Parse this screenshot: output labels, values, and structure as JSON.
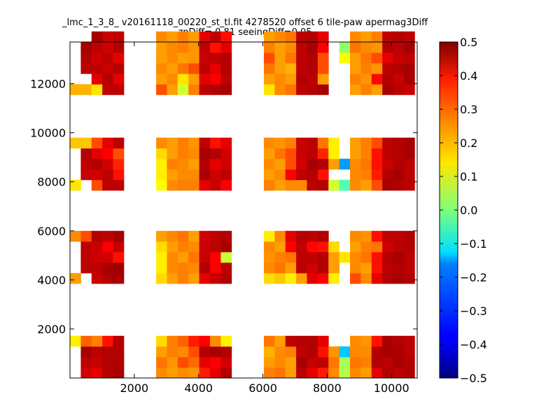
{
  "chart_data": {
    "type": "heatmap",
    "title": "_lmc_1_3_8_ v20161118_00220_st_tl.fit 4278520 offset 6 tile-paw apermag3Diff",
    "subtitle": "zpDiff= 0.81 seeingDiff=0.05",
    "xlabel": "",
    "ylabel": "",
    "xlim": [
      0,
      10800
    ],
    "ylim": [
      0,
      13700
    ],
    "xticks": [
      2000,
      4000,
      6000,
      8000,
      10000
    ],
    "yticks": [
      2000,
      4000,
      6000,
      8000,
      10000,
      12000
    ],
    "xtick_labels": [
      "2000",
      "4000",
      "6000",
      "8000",
      "10000"
    ],
    "ytick_labels": [
      "2000",
      "4000",
      "6000",
      "8000",
      "10000",
      "12000"
    ],
    "colormap": "jet",
    "vmin": -0.5,
    "vmax": 0.5,
    "colorbar_ticks": [
      0.5,
      0.4,
      0.3,
      0.2,
      0.1,
      0.0,
      -0.1,
      -0.2,
      -0.3,
      -0.4,
      -0.5
    ],
    "colorbar_tick_labels": [
      "0.5",
      "0.4",
      "0.3",
      "0.2",
      "0.1",
      "0.0",
      "−0.1",
      "−0.2",
      "−0.3",
      "−0.4",
      "−0.5"
    ],
    "grid": false,
    "cell_width": 335,
    "cell_height": 430,
    "columns_x_start": [
      0,
      335,
      670,
      1005,
      1340,
      2680,
      3015,
      3350,
      3685,
      4020,
      4355,
      4690,
      6030,
      6365,
      6700,
      7035,
      7370,
      7705,
      8040,
      8375,
      8710,
      9045,
      9380,
      9715,
      10050,
      10385
    ],
    "blocks": [
      {
        "name": "bottom",
        "y_start": 0,
        "rows": [
          [
            null,
            0.42,
            0.4,
            0.45,
            0.46,
            0.24,
            0.22,
            0.24,
            0.23,
            0.35,
            0.4,
            0.45,
            0.25,
            0.26,
            0.22,
            0.44,
            0.4,
            0.35,
            0.24,
            0.05,
            0.24,
            0.22,
            0.4,
            0.45,
            0.44,
            0.45
          ],
          [
            null,
            0.44,
            0.43,
            0.45,
            0.45,
            0.26,
            0.23,
            0.3,
            0.27,
            0.4,
            0.38,
            0.42,
            0.22,
            0.24,
            0.22,
            0.46,
            0.43,
            0.44,
            0.26,
            0.04,
            0.26,
            0.25,
            0.45,
            0.44,
            0.46,
            0.45
          ],
          [
            null,
            0.46,
            0.44,
            0.45,
            0.45,
            0.22,
            0.25,
            0.24,
            0.3,
            0.45,
            0.46,
            0.45,
            0.2,
            0.24,
            0.25,
            0.44,
            0.45,
            0.36,
            0.23,
            -0.18,
            0.24,
            0.24,
            0.45,
            0.46,
            0.46,
            0.44
          ],
          [
            0.14,
            0.28,
            0.25,
            0.36,
            0.45,
            0.16,
            0.25,
            0.28,
            0.35,
            0.38,
            0.24,
            0.14,
            0.26,
            0.22,
            0.44,
            0.45,
            0.45,
            0.4,
            null,
            null,
            0.24,
            0.23,
            0.36,
            0.46,
            0.45,
            0.44
          ]
        ]
      },
      {
        "name": "lower-middle",
        "y_start": 3850,
        "rows": [
          [
            0.22,
            null,
            0.43,
            0.45,
            0.46,
            0.16,
            0.22,
            0.25,
            0.22,
            0.4,
            0.43,
            0.45,
            0.16,
            0.18,
            0.14,
            0.22,
            0.4,
            0.38,
            0.14,
            null,
            0.3,
            0.24,
            0.4,
            0.45,
            0.46,
            0.45
          ],
          [
            null,
            0.44,
            0.44,
            0.46,
            0.47,
            0.14,
            0.24,
            0.25,
            0.24,
            0.45,
            0.38,
            0.44,
            0.24,
            0.26,
            0.22,
            0.44,
            0.42,
            0.45,
            0.22,
            null,
            0.24,
            0.22,
            0.36,
            0.44,
            0.45,
            0.44
          ],
          [
            null,
            0.44,
            0.42,
            0.42,
            0.36,
            0.14,
            0.24,
            0.22,
            0.26,
            0.43,
            0.38,
            0.07,
            0.23,
            0.25,
            0.26,
            0.44,
            0.44,
            0.45,
            0.22,
            0.15,
            0.24,
            0.26,
            0.36,
            0.45,
            0.46,
            0.44
          ],
          [
            null,
            0.44,
            0.43,
            0.38,
            0.43,
            0.16,
            0.22,
            0.25,
            0.24,
            0.43,
            0.44,
            0.46,
            0.24,
            0.22,
            0.38,
            0.44,
            0.37,
            0.36,
            0.16,
            null,
            0.22,
            0.25,
            0.26,
            0.42,
            0.44,
            0.45
          ],
          [
            0.24,
            0.3,
            0.45,
            0.44,
            0.46,
            0.22,
            0.24,
            0.26,
            0.22,
            0.42,
            0.44,
            0.45,
            0.14,
            0.24,
            0.4,
            0.45,
            0.44,
            0.45,
            null,
            null,
            0.24,
            0.23,
            0.36,
            0.44,
            0.44,
            0.45
          ]
        ]
      },
      {
        "name": "upper-middle",
        "y_start": 7650,
        "rows": [
          [
            0.15,
            null,
            0.3,
            0.44,
            0.44,
            0.12,
            0.24,
            0.25,
            0.25,
            0.4,
            0.43,
            0.38,
            0.25,
            0.22,
            0.24,
            0.24,
            0.44,
            0.45,
            0.08,
            -0.05,
            0.24,
            0.22,
            0.3,
            0.46,
            0.45,
            0.44
          ],
          [
            null,
            0.43,
            0.42,
            0.44,
            0.36,
            0.14,
            0.22,
            0.24,
            0.24,
            0.46,
            0.42,
            0.44,
            0.22,
            0.24,
            0.38,
            0.44,
            0.45,
            0.36,
            null,
            null,
            0.24,
            0.25,
            0.35,
            0.45,
            0.46,
            0.44
          ],
          [
            null,
            0.44,
            0.45,
            0.42,
            0.34,
            0.14,
            0.25,
            0.24,
            0.22,
            0.45,
            0.4,
            0.42,
            0.24,
            0.22,
            0.3,
            0.42,
            0.46,
            0.45,
            0.22,
            -0.22,
            0.24,
            0.26,
            0.36,
            0.43,
            0.45,
            0.44
          ],
          [
            null,
            0.45,
            0.4,
            0.38,
            0.3,
            0.16,
            0.22,
            0.25,
            0.24,
            0.46,
            0.45,
            0.42,
            0.22,
            0.26,
            0.3,
            0.43,
            0.44,
            0.34,
            0.14,
            null,
            0.22,
            0.25,
            0.36,
            0.44,
            0.45,
            0.46
          ],
          [
            0.18,
            0.18,
            0.3,
            0.4,
            0.44,
            0.24,
            0.22,
            0.25,
            0.23,
            0.44,
            0.36,
            0.4,
            0.24,
            0.23,
            0.25,
            0.43,
            0.44,
            0.26,
            0.14,
            null,
            0.22,
            0.25,
            0.3,
            0.44,
            0.45,
            0.46
          ]
        ]
      },
      {
        "name": "top",
        "y_start": 11550,
        "rows": [
          [
            0.2,
            0.2,
            0.15,
            0.44,
            0.44,
            0.3,
            0.22,
            0.08,
            0.25,
            0.44,
            0.45,
            0.46,
            0.15,
            0.24,
            0.26,
            0.44,
            0.45,
            0.46,
            null,
            null,
            0.22,
            0.25,
            0.22,
            0.46,
            0.44,
            0.43
          ],
          [
            null,
            null,
            0.4,
            0.45,
            0.4,
            0.22,
            0.24,
            0.15,
            0.22,
            0.4,
            0.38,
            0.44,
            0.22,
            0.24,
            0.22,
            0.45,
            0.44,
            0.22,
            null,
            null,
            0.25,
            0.23,
            0.37,
            0.45,
            0.43,
            0.46
          ],
          [
            null,
            0.44,
            0.44,
            0.43,
            0.45,
            0.24,
            0.22,
            0.26,
            0.3,
            0.44,
            0.4,
            0.45,
            0.26,
            0.22,
            0.2,
            0.44,
            0.45,
            0.3,
            null,
            null,
            0.22,
            0.25,
            0.23,
            0.44,
            0.45,
            0.46
          ],
          [
            null,
            0.45,
            0.42,
            0.44,
            0.4,
            0.22,
            0.24,
            0.22,
            0.23,
            0.43,
            0.44,
            0.45,
            0.3,
            0.22,
            0.26,
            0.44,
            0.45,
            0.3,
            null,
            0.12,
            0.22,
            0.26,
            0.3,
            0.4,
            0.43,
            0.44
          ],
          [
            null,
            0.46,
            0.44,
            0.42,
            0.45,
            0.22,
            0.24,
            0.25,
            0.23,
            0.44,
            0.36,
            0.4,
            0.25,
            0.22,
            0.24,
            0.44,
            0.46,
            0.38,
            null,
            0.02,
            0.26,
            0.24,
            0.23,
            0.45,
            0.44,
            0.46
          ],
          [
            null,
            null,
            0.46,
            0.43,
            0.44,
            0.24,
            0.22,
            0.25,
            0.22,
            0.4,
            0.44,
            0.36,
            0.22,
            0.24,
            0.26,
            0.44,
            0.45,
            0.4,
            null,
            null,
            0.24,
            0.22,
            0.25,
            0.44,
            0.45,
            0.44
          ]
        ]
      }
    ]
  }
}
